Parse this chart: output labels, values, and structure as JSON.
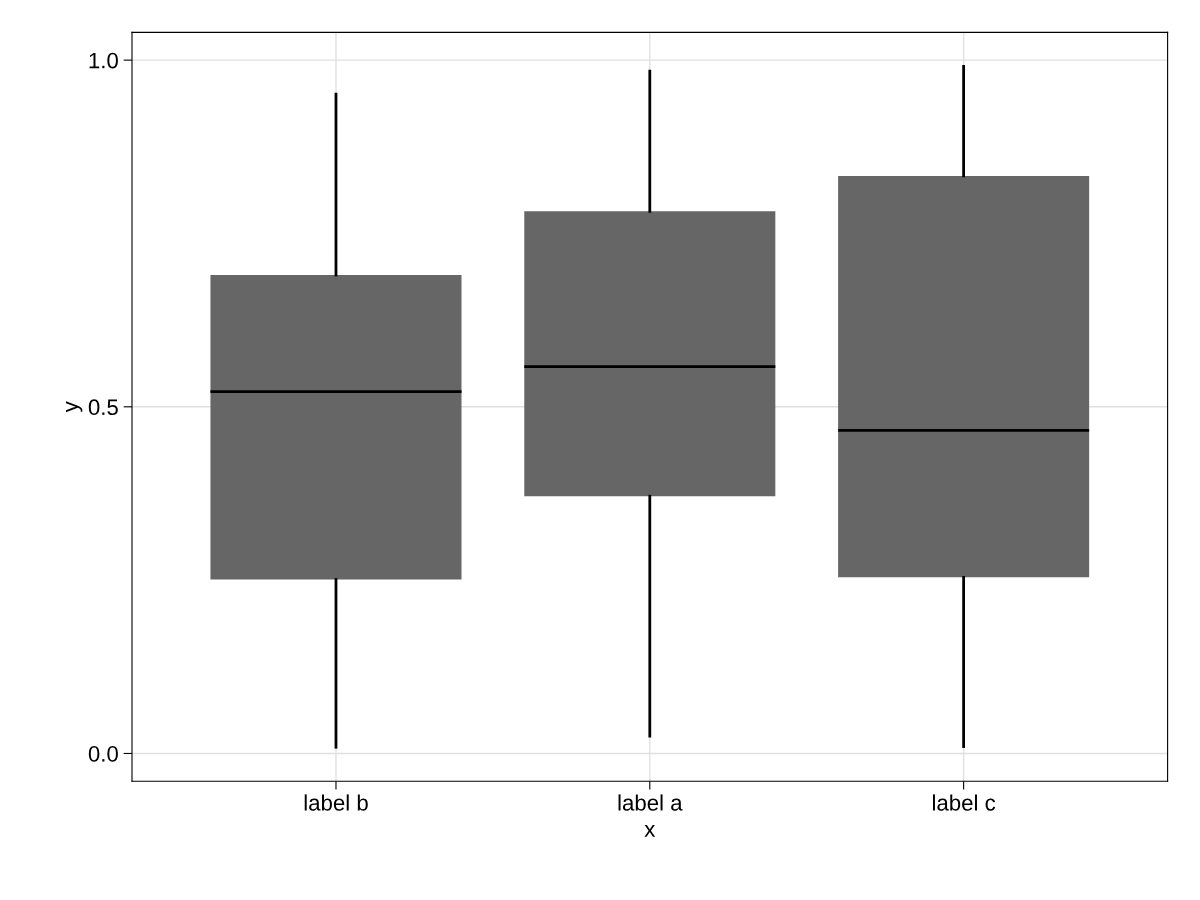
{
  "chart_data": {
    "type": "box",
    "xlabel": "x",
    "ylabel": "y",
    "categories": [
      "label b",
      "label a",
      "label c"
    ],
    "boxes": [
      {
        "low": 0.009,
        "q1": 0.251,
        "median": 0.522,
        "q3": 0.69,
        "high": 0.951
      },
      {
        "low": 0.025,
        "q1": 0.371,
        "median": 0.558,
        "q3": 0.782,
        "high": 0.984
      },
      {
        "low": 0.01,
        "q1": 0.254,
        "median": 0.466,
        "q3": 0.833,
        "high": 0.991
      }
    ],
    "color": "#666666",
    "ylim": [
      -0.04,
      1.04
    ],
    "yticks": [
      {
        "value": 0,
        "label": "0.0"
      },
      {
        "value": 0.5,
        "label": "0.5"
      },
      {
        "value": 1,
        "label": "1.0"
      }
    ],
    "grid": true
  }
}
